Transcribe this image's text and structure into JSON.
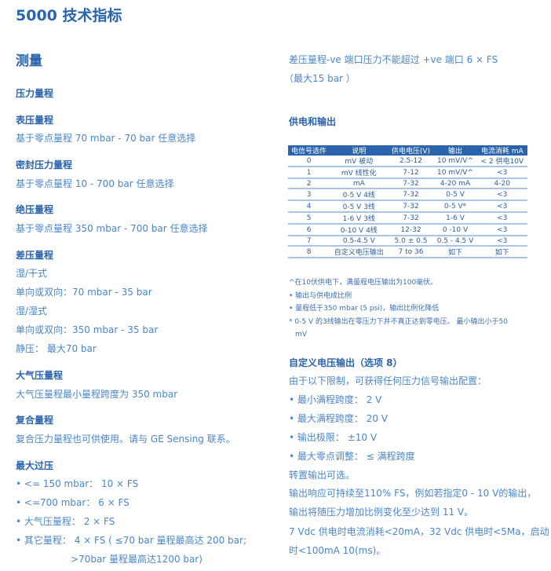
{
  "title": "5000 技术指标",
  "left": {
    "measure": "测量",
    "range": "压力量程",
    "gauge": "表压量程",
    "gauge_t": "基于零点量程 70 mbar  -  70 bar 任意选择",
    "sealed": "密封压力量程",
    "sealed_t": "基于零点量程 10  - 700 bar  任意选择",
    "abs": "绝压量程",
    "abs_t": "基于零点量程 350 mbar  - 700 bar 任意选择",
    "diff": "差压量程",
    "diff_1": "湿/干式",
    "diff_2": "单向或双向：70 mbar  - 35 bar",
    "diff_3": "湿/湿式",
    "diff_4": "单向或双向：350 mbar - 35 bar",
    "diff_5": "静压：  最大70 bar",
    "baro": "大气压量程",
    "baro_t": "大气压量程最小量程跨度为 350 mbar",
    "comp": "复合量程",
    "comp_t": "复合压力量程也可供使用。请与 GE Sensing 联系。",
    "over": "最大过压",
    "over_items": [
      "• <= 150 mbar：  10  ×  FS",
      "• <=700 mbar：  6  ×  FS",
      "• 大气压量程：  2  ×  FS",
      "• 其它量程：  4  ×  FS (  ≤70 bar 量程最高达 200 bar;"
    ],
    "over_cont": ">70bar 量程最高达1200 bar)"
  },
  "right": {
    "diff_note1": "差压量程-ve 端口压力不能超过 +ve 端口 6  ×  FS",
    "diff_note2": "（最大15 bar ）",
    "supply": "供电和输出",
    "table": {
      "headers": [
        "电信号选件",
        "说明",
        "供电电压(V)",
        "输出",
        "电流消耗 mA"
      ],
      "rows": [
        [
          "0",
          "mV 被动",
          "2.5-12",
          "10 mV/V^",
          "< 2 供电10V"
        ],
        [
          "1",
          "mV 线性化",
          "7-12",
          "10 mV/V^",
          "<3"
        ],
        [
          "2",
          "mA",
          "7-32",
          "4-20 mA",
          "4-20"
        ],
        [
          "3",
          "0-5 V  4线",
          "7-32",
          "0-5 V",
          "<3"
        ],
        [
          "4",
          "0-5 V  3线",
          "7-32",
          "0-5 V*",
          "<3"
        ],
        [
          "5",
          "1-6 V  3线",
          "7-32",
          "1-6 V",
          "<3"
        ],
        [
          "6",
          "0-10 V  4线",
          "12-32",
          "0 -10 V",
          "<3"
        ],
        [
          "7",
          "0.5-4.5 V",
          "5.0  ±  0.5",
          "0.5 - 4.5 V",
          "<3"
        ],
        [
          "8",
          "自定义电压输出",
          "7 to 36",
          "如下",
          "如下"
        ]
      ]
    },
    "notes": [
      "^在10伏供电下，满量程电压输出为100毫伏。",
      "• 输出与供电成比例",
      "• 量程低于350 mbar (5 psi)，输出比例化降低",
      "* 0-5 V 的3线输出在零压力下并不真正达到零电压。 最小输出小于50",
      "mV"
    ],
    "custom": "自定义电压输出（选项 8）",
    "custom_lines": [
      "由于以下限制，可获得任何压力信号输出配置：",
      "• 最小满程跨度：  2 V",
      "• 最大满程跨度：  20 V",
      "• 输出极限：   ±10 V",
      "• 最大零点调整：  ≤ 满程跨度",
      "转置输出可选。",
      "输出响应可持续至110% FS，例如若指定0  -  10 V的输出，",
      "输出将随压力增加比例变化至少达到 11 V。",
      "7 Vdc 供电时电流消耗<20mA，32 Vdc 供电时<5Ma，启动",
      "时<100mA 10(ms)。"
    ]
  }
}
